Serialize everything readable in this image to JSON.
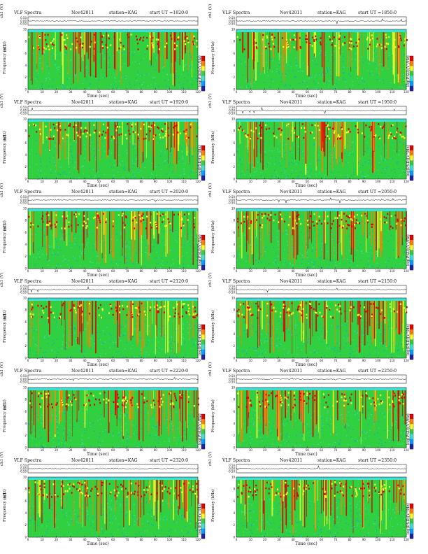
{
  "chart_data": [
    {
      "type": "heatmap",
      "title": "VLF Spectra",
      "date": "Nov42011",
      "station": "station=KAG",
      "start_ut": "start UT =1820:0",
      "spec_x_ticks": [
        0,
        10,
        20,
        30,
        40,
        50,
        60,
        70,
        80,
        90,
        100,
        110,
        120
      ],
      "spec_y_ticks": [
        0,
        2,
        4,
        6,
        8,
        10
      ],
      "ch1_ticks": [
        "0.50",
        "0.00",
        "-0.50"
      ],
      "xlabel": "Time (sec)",
      "ylabel": "Frequency (kHz)",
      "ch1_label": "ch1 (V)",
      "ch1_prefix": "ch1",
      "colorbar_label": "log(PSD)(V²/Hz)",
      "xlim": [
        0,
        120
      ],
      "ylim": [
        0,
        10
      ]
    },
    {
      "type": "heatmap",
      "title": "VLF Spectra",
      "date": "Nov42011",
      "station": "station=KAG",
      "start_ut": "start UT =1850:0",
      "spec_x_ticks": [
        0,
        10,
        20,
        30,
        40,
        50,
        60,
        70,
        80,
        90,
        100,
        110,
        120
      ],
      "spec_y_ticks": [
        0,
        2,
        4,
        6,
        8,
        10
      ],
      "ch1_ticks": [
        "0.50",
        "0.00",
        "-0.50"
      ],
      "xlabel": "Time (sec)",
      "ylabel": "Frequency (kHz)",
      "ch1_label": "ch1 (V)",
      "ch1_prefix": "",
      "colorbar_label": "log(PSD)(V²/Hz)",
      "xlim": [
        0,
        120
      ],
      "ylim": [
        0,
        10
      ]
    },
    {
      "type": "heatmap",
      "title": "VLF Spectra",
      "date": "Nov42011",
      "station": "station=KAG",
      "start_ut": "start UT =1920:0",
      "spec_x_ticks": [
        0,
        10,
        20,
        30,
        40,
        50,
        60,
        70,
        80,
        90,
        100,
        110,
        120
      ],
      "spec_y_ticks": [
        0,
        2,
        4,
        6,
        8,
        10
      ],
      "ch1_ticks": [
        "0.50",
        "0.00",
        "-0.50"
      ],
      "xlabel": "Time (sec)",
      "ylabel": "Frequency (kHz)",
      "ch1_label": "ch1 (V)",
      "ch1_prefix": "ch1",
      "colorbar_label": "log(PSD)(V²/Hz)",
      "xlim": [
        0,
        120
      ],
      "ylim": [
        0,
        10
      ]
    },
    {
      "type": "heatmap",
      "title": "VLF Spectra",
      "date": "Nov42011",
      "station": "station=KAG",
      "start_ut": "start UT =1950:0",
      "spec_x_ticks": [
        0,
        10,
        20,
        30,
        40,
        50,
        60,
        70,
        80,
        90,
        100,
        110,
        120
      ],
      "spec_y_ticks": [
        0,
        2,
        4,
        6,
        8,
        10
      ],
      "ch1_ticks": [
        "0.50",
        "0.00",
        "-0.50"
      ],
      "xlabel": "Time (sec)",
      "ylabel": "Frequency (kHz)",
      "ch1_label": "ch1 (V)",
      "ch1_prefix": "",
      "colorbar_label": "log(PSD)(V²/Hz)",
      "xlim": [
        0,
        120
      ],
      "ylim": [
        0,
        10
      ]
    },
    {
      "type": "heatmap",
      "title": "VLF Spectra",
      "date": "Nov42011",
      "station": "station=KAG",
      "start_ut": "start UT =2020:0",
      "spec_x_ticks": [
        0,
        10,
        20,
        30,
        40,
        50,
        60,
        70,
        80,
        90,
        100,
        110,
        120
      ],
      "spec_y_ticks": [
        0,
        2,
        4,
        6,
        8,
        10
      ],
      "ch1_ticks": [
        "0.50",
        "0.00",
        "-0.50"
      ],
      "xlabel": "Time (sec)",
      "ylabel": "Frequency (kHz)",
      "ch1_label": "ch1 (V)",
      "ch1_prefix": "ch1",
      "colorbar_label": "log(PSD)(V²/Hz)",
      "xlim": [
        0,
        120
      ],
      "ylim": [
        0,
        10
      ]
    },
    {
      "type": "heatmap",
      "title": "VLF Spectra",
      "date": "Nov42011",
      "station": "station=KAG",
      "start_ut": "start UT =2050:0",
      "spec_x_ticks": [
        0,
        10,
        20,
        30,
        40,
        50,
        60,
        70,
        80,
        90,
        100,
        110,
        120
      ],
      "spec_y_ticks": [
        0,
        2,
        4,
        6,
        8,
        10
      ],
      "ch1_ticks": [
        "0.50",
        "0.00",
        "-0.50"
      ],
      "xlabel": "Time (sec)",
      "ylabel": "Frequency (kHz)",
      "ch1_label": "ch1 (V)",
      "ch1_prefix": "",
      "colorbar_label": "log(PSD)(V²/Hz)",
      "xlim": [
        0,
        120
      ],
      "ylim": [
        0,
        10
      ]
    },
    {
      "type": "heatmap",
      "title": "VLF Spectra",
      "date": "Nov42011",
      "station": "station=KAG",
      "start_ut": "start UT =2120:0",
      "spec_x_ticks": [
        0,
        10,
        20,
        30,
        40,
        50,
        60,
        70,
        80,
        90,
        100,
        110,
        120
      ],
      "spec_y_ticks": [
        0,
        2,
        4,
        6,
        8,
        10
      ],
      "ch1_ticks": [
        "0.50",
        "0.00",
        "-0.50"
      ],
      "xlabel": "Time (sec)",
      "ylabel": "Frequency (kHz)",
      "ch1_label": "ch1 (V)",
      "ch1_prefix": "ch1",
      "colorbar_label": "log(PSD)(V²/Hz)",
      "xlim": [
        0,
        120
      ],
      "ylim": [
        0,
        10
      ]
    },
    {
      "type": "heatmap",
      "title": "VLF Spectra",
      "date": "Nov42011",
      "station": "station=KAG",
      "start_ut": "start UT =2150:0",
      "spec_x_ticks": [
        0,
        10,
        20,
        30,
        40,
        50,
        60,
        70,
        80,
        90,
        100,
        110,
        120
      ],
      "spec_y_ticks": [
        0,
        2,
        4,
        6,
        8,
        10
      ],
      "ch1_ticks": [
        "0.50",
        "0.00",
        "-0.50"
      ],
      "xlabel": "Time (sec)",
      "ylabel": "Frequency (kHz)",
      "ch1_label": "ch1 (V)",
      "ch1_prefix": "",
      "colorbar_label": "log(PSD)(V²/Hz)",
      "xlim": [
        0,
        120
      ],
      "ylim": [
        0,
        10
      ]
    },
    {
      "type": "heatmap",
      "title": "VLF Spectra",
      "date": "Nov42011",
      "station": "station=KAG",
      "start_ut": "start UT =2220:0",
      "spec_x_ticks": [
        0,
        10,
        20,
        30,
        40,
        50,
        60,
        70,
        80,
        90,
        100,
        110,
        120
      ],
      "spec_y_ticks": [
        0,
        2,
        4,
        6,
        8,
        10
      ],
      "ch1_ticks": [
        "0.50",
        "0.00",
        "-0.50"
      ],
      "xlabel": "Time (sec)",
      "ylabel": "Frequency (kHz)",
      "ch1_label": "ch1 (V)",
      "ch1_prefix": "ch1",
      "colorbar_label": "log(PSD)(V²/Hz)",
      "xlim": [
        0,
        120
      ],
      "ylim": [
        0,
        10
      ]
    },
    {
      "type": "heatmap",
      "title": "VLF Spectra",
      "date": "Nov42011",
      "station": "station=KAG",
      "start_ut": "start UT =2250:0",
      "spec_x_ticks": [
        0,
        10,
        20,
        30,
        40,
        50,
        60,
        70,
        80,
        90,
        100,
        110,
        120
      ],
      "spec_y_ticks": [
        0,
        2,
        4,
        6,
        8,
        10
      ],
      "ch1_ticks": [
        "0.50",
        "0.00",
        "-0.50"
      ],
      "xlabel": "Time (sec)",
      "ylabel": "Frequency (kHz)",
      "ch1_label": "ch1 (V)",
      "ch1_prefix": "",
      "colorbar_label": "log(PSD)(V²/Hz)",
      "xlim": [
        0,
        120
      ],
      "ylim": [
        0,
        10
      ]
    },
    {
      "type": "heatmap",
      "title": "VLF Spectra",
      "date": "Nov42011",
      "station": "station=KAG",
      "start_ut": "start UT =2320:0",
      "spec_x_ticks": [
        0,
        10,
        20,
        30,
        40,
        50,
        60,
        70,
        80,
        90,
        100,
        110,
        120
      ],
      "spec_y_ticks": [
        0,
        2,
        4,
        6,
        8,
        10
      ],
      "ch1_ticks": [
        "0.50",
        "0.00",
        "-0.50"
      ],
      "xlabel": "Time (sec)",
      "ylabel": "Frequency (kHz)",
      "ch1_label": "ch1 (V)",
      "ch1_prefix": "ch1",
      "colorbar_label": "log(PSD)(V²/Hz)",
      "xlim": [
        0,
        120
      ],
      "ylim": [
        0,
        10
      ]
    },
    {
      "type": "heatmap",
      "title": "VLF Spectra",
      "date": "Nov42011",
      "station": "station=KAG",
      "start_ut": "start UT =2350:0",
      "spec_x_ticks": [
        0,
        10,
        20,
        30,
        40,
        50,
        60,
        70,
        80,
        90,
        100,
        110,
        120
      ],
      "spec_y_ticks": [
        0,
        2,
        4,
        6,
        8,
        10
      ],
      "ch1_ticks": [
        "0.50",
        "0.00",
        "-0.50"
      ],
      "xlabel": "Time (sec)",
      "ylabel": "Frequency (kHz)",
      "ch1_label": "ch1 (V)",
      "ch1_prefix": "",
      "colorbar_label": "log(PSD)(V²/Hz)",
      "xlim": [
        0,
        120
      ],
      "ylim": [
        0,
        10
      ]
    }
  ],
  "colormap": {
    "colors": [
      "#2020a0",
      "#00a0ff",
      "#40e0d0",
      "#30d040",
      "#ffff20",
      "#ff8000",
      "#e00000"
    ]
  }
}
